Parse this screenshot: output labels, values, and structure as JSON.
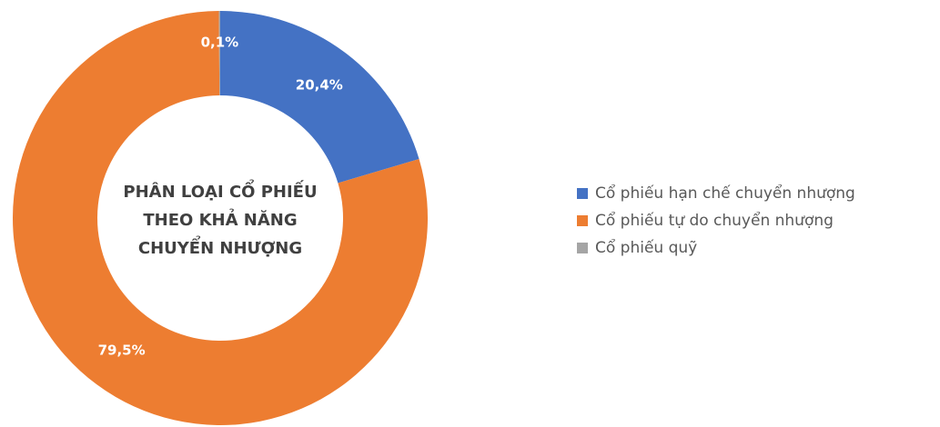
{
  "chart_data": {
    "type": "pie",
    "title": [
      "PHÂN LOẠI CỔ PHIẾU",
      "THEO KHẢ NĂNG",
      "CHUYỂN NHƯỢNG"
    ],
    "categories": [
      "Cổ phiếu hạn chế chuyển nhượng",
      "Cổ phiếu tự do chuyển nhượng",
      "Cổ phiếu quỹ"
    ],
    "values": [
      20.4,
      79.5,
      0.1
    ],
    "value_labels": [
      "20,4%",
      "79,5%",
      "0,1%"
    ],
    "colors": [
      "#4472c4",
      "#ed7d31",
      "#a5a5a5"
    ],
    "legend": "right"
  }
}
